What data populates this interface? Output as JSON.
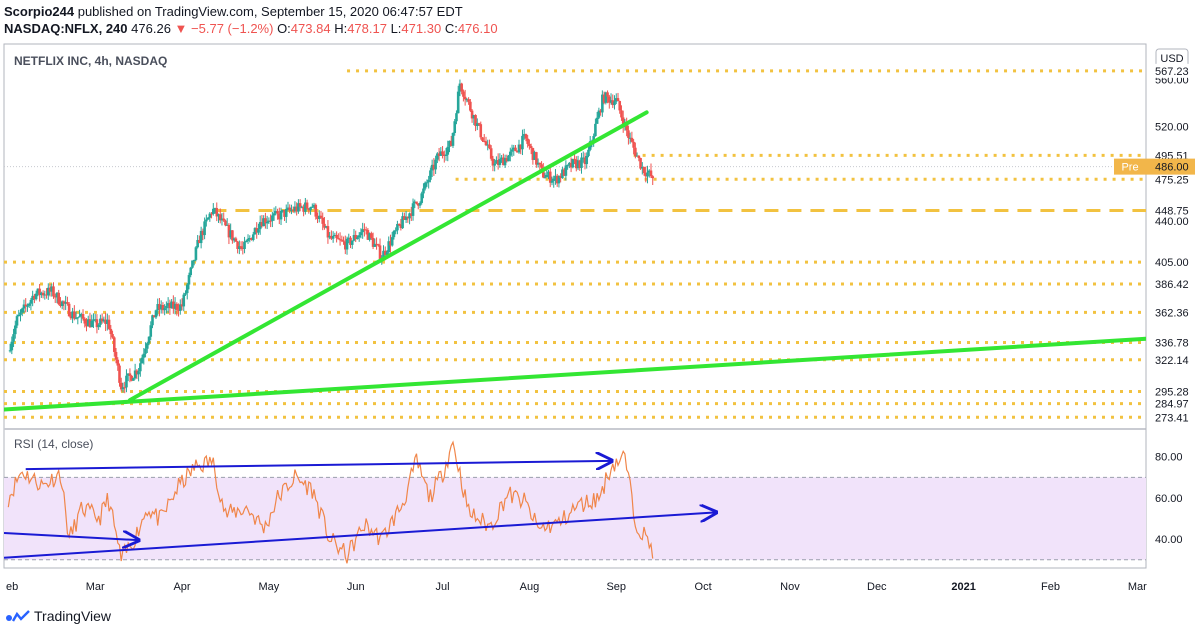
{
  "header": {
    "author": "Scorpio244",
    "publish_text": "published on TradingView.com, September 15, 2020 06:47:57 EDT",
    "symbol": "NASDAQ:NFLX, 240",
    "last": "476.26",
    "change": "−5.77 (−1.2%)",
    "open_label": "O:",
    "open": "473.84",
    "high_label": "H:",
    "high": "478.17",
    "low_label": "L:",
    "low": "471.30",
    "close_label": "C:",
    "close": "476.10"
  },
  "footer": {
    "brand": "TradingView"
  },
  "colors": {
    "up": "#26a69a",
    "down": "#ef5350",
    "level": "#f2c240",
    "trend": "#33e633",
    "rsi_line": "#f0864a",
    "rsi_band": "#f1e3fa",
    "rsi_arrow": "#1a1ad4",
    "price_tag": "#f2b64a"
  },
  "chart_data": [
    {
      "type": "candlestick",
      "title": "NETFLIX INC, 4h, NASDAQ",
      "currency": "USD",
      "ylim": [
        266,
        590
      ],
      "y_ticks": [
        440,
        520,
        560
      ],
      "x_tick_labels": [
        "eb",
        "Mar",
        "Apr",
        "May",
        "Jun",
        "Jul",
        "Aug",
        "Sep",
        "Oct",
        "Nov",
        "Dec",
        "2021",
        "Feb",
        "Mar"
      ],
      "x_tick_bold": [
        "2021"
      ],
      "x_range_months": [
        0.95,
        14.1
      ],
      "price_path": [
        [
          1.0,
          330
        ],
        [
          1.1,
          356
        ],
        [
          1.3,
          378
        ],
        [
          1.5,
          380
        ],
        [
          1.75,
          360
        ],
        [
          1.9,
          355
        ],
        [
          2.0,
          352
        ],
        [
          2.15,
          355
        ],
        [
          2.3,
          300
        ],
        [
          2.5,
          315
        ],
        [
          2.7,
          365
        ],
        [
          3.0,
          368
        ],
        [
          3.2,
          425
        ],
        [
          3.35,
          450
        ],
        [
          3.5,
          434
        ],
        [
          3.7,
          415
        ],
        [
          3.9,
          440
        ],
        [
          4.1,
          444
        ],
        [
          4.3,
          450
        ],
        [
          4.5,
          453
        ],
        [
          4.7,
          425
        ],
        [
          4.9,
          420
        ],
        [
          5.1,
          433
        ],
        [
          5.3,
          410
        ],
        [
          5.5,
          435
        ],
        [
          5.75,
          460
        ],
        [
          5.95,
          495
        ],
        [
          6.1,
          505
        ],
        [
          6.2,
          557
        ],
        [
          6.4,
          521
        ],
        [
          6.6,
          487
        ],
        [
          6.8,
          497
        ],
        [
          6.95,
          510
        ],
        [
          7.15,
          480
        ],
        [
          7.3,
          475
        ],
        [
          7.5,
          488
        ],
        [
          7.65,
          490
        ],
        [
          7.85,
          545
        ],
        [
          8.0,
          542
        ],
        [
          8.15,
          510
        ],
        [
          8.3,
          485
        ],
        [
          8.42,
          476.26
        ]
      ],
      "levels": [
        {
          "value": 567.23,
          "label": "567.23",
          "style": "dotted",
          "from_month": 4.9
        },
        {
          "value": 495.51,
          "label": "495.51",
          "style": "dotted",
          "from_month": 8.2
        },
        {
          "value": 475.25,
          "label": "475.25",
          "style": "dotted",
          "from_month": 6.15
        },
        {
          "value": 448.75,
          "label": "448.75",
          "style": "dashed",
          "from_month": 3.35
        },
        {
          "value": 405.0,
          "label": "405.00",
          "style": "dotted",
          "from_month": 0.95
        },
        {
          "value": 386.42,
          "label": "386.42",
          "style": "dotted",
          "from_month": 0.95
        },
        {
          "value": 362.36,
          "label": "362.36",
          "style": "dotted",
          "from_month": 0.95
        },
        {
          "value": 336.78,
          "label": "336.78",
          "style": "dotted",
          "from_month": 0.95
        },
        {
          "value": 322.14,
          "label": "322.14",
          "style": "dotted",
          "from_month": 0.95
        },
        {
          "value": 295.28,
          "label": "295.28",
          "style": "dotted",
          "from_month": 0.95
        },
        {
          "value": 284.97,
          "label": "284.97",
          "style": "dotted",
          "from_month": 0.95
        },
        {
          "value": 273.41,
          "label": "273.41",
          "style": "dotted",
          "from_month": 0.95
        }
      ],
      "current_price": {
        "label": "Pre",
        "value": "486.00"
      },
      "trendlines": [
        {
          "x1": 2.4,
          "y1": 288,
          "x2": 8.35,
          "y2": 532
        },
        {
          "x1": 0.95,
          "y1": 280,
          "x2": 14.1,
          "y2": 340
        }
      ]
    },
    {
      "type": "line",
      "title": "RSI (14, close)",
      "ylim": [
        26,
        92
      ],
      "band": [
        30,
        70
      ],
      "y_ticks": [
        40,
        60,
        80
      ],
      "series": [
        [
          1.0,
          60
        ],
        [
          1.15,
          73
        ],
        [
          1.4,
          66
        ],
        [
          1.6,
          72
        ],
        [
          1.7,
          40
        ],
        [
          1.85,
          55
        ],
        [
          2.05,
          50
        ],
        [
          2.15,
          60
        ],
        [
          2.3,
          30
        ],
        [
          2.45,
          40
        ],
        [
          2.6,
          55
        ],
        [
          2.75,
          49
        ],
        [
          2.95,
          65
        ],
        [
          3.15,
          75
        ],
        [
          3.35,
          78
        ],
        [
          3.5,
          52
        ],
        [
          3.75,
          55
        ],
        [
          3.95,
          45
        ],
        [
          4.1,
          60
        ],
        [
          4.3,
          70
        ],
        [
          4.5,
          64
        ],
        [
          4.7,
          40
        ],
        [
          4.9,
          32
        ],
        [
          5.1,
          47
        ],
        [
          5.3,
          40
        ],
        [
          5.55,
          58
        ],
        [
          5.7,
          78
        ],
        [
          5.85,
          60
        ],
        [
          6.0,
          72
        ],
        [
          6.12,
          87
        ],
        [
          6.3,
          53
        ],
        [
          6.55,
          46
        ],
        [
          6.75,
          62
        ],
        [
          6.95,
          58
        ],
        [
          7.1,
          45
        ],
        [
          7.35,
          48
        ],
        [
          7.55,
          56
        ],
        [
          7.8,
          60
        ],
        [
          7.95,
          76
        ],
        [
          8.1,
          80
        ],
        [
          8.22,
          49
        ],
        [
          8.42,
          35
        ]
      ],
      "arrows": [
        {
          "x1": 1.2,
          "y1": 74,
          "x2": 7.95,
          "y2": 78
        },
        {
          "x1": 0.95,
          "y1": 31,
          "x2": 9.15,
          "y2": 53
        },
        {
          "x1": 0.95,
          "y1": 43,
          "x2": 2.5,
          "y2": 39.5
        }
      ]
    }
  ]
}
